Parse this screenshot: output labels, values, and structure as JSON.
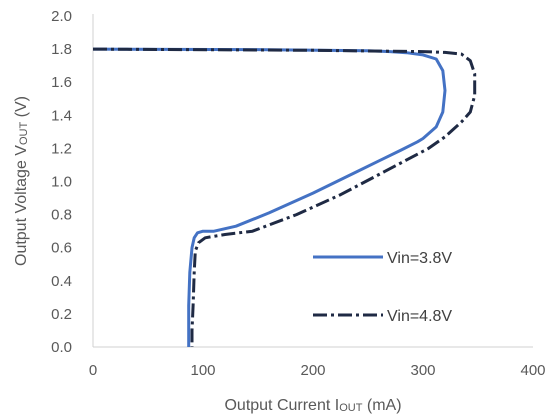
{
  "chart_data": {
    "type": "line",
    "xlabel_main": "Output  Current I",
    "xlabel_sub": "OUT",
    "xlabel_unit": " (mA)",
    "ylabel_main": "Output  Voltage V",
    "ylabel_sub": "OUT",
    "ylabel_unit": " (V)",
    "xlim": [
      0,
      400
    ],
    "ylim": [
      0,
      2.0
    ],
    "xticks": [
      "0",
      "100",
      "200",
      "300",
      "400"
    ],
    "yticks": [
      "0.0",
      "0.2",
      "0.4",
      "0.6",
      "0.8",
      "1.0",
      "1.2",
      "1.4",
      "1.6",
      "1.8",
      "2.0"
    ],
    "grid": false,
    "legend_position": "bottom-right",
    "series": [
      {
        "name": "Vin=3.8V",
        "style": "solid",
        "color": "#4472C4",
        "x": [
          0,
          150,
          250,
          270,
          285,
          300,
          312,
          318,
          320,
          318,
          312,
          300,
          295,
          280,
          240,
          200,
          160,
          130,
          110,
          100,
          95,
          92,
          90,
          88,
          87,
          87,
          87
        ],
        "y": [
          1.8,
          1.797,
          1.79,
          1.785,
          1.778,
          1.765,
          1.74,
          1.67,
          1.55,
          1.42,
          1.33,
          1.26,
          1.24,
          1.19,
          1.06,
          0.93,
          0.81,
          0.73,
          0.7,
          0.7,
          0.69,
          0.66,
          0.6,
          0.45,
          0.25,
          0.1,
          0.0
        ]
      },
      {
        "name": "Vin=4.8V",
        "style": "dashdot",
        "color": "#1F2A44",
        "x": [
          0,
          200,
          300,
          320,
          335,
          343,
          347,
          347,
          343,
          335,
          320,
          305,
          265,
          225,
          185,
          145,
          120,
          102,
          96,
          93,
          92,
          91,
          90,
          90
        ],
        "y": [
          1.8,
          1.793,
          1.785,
          1.78,
          1.77,
          1.73,
          1.65,
          1.52,
          1.42,
          1.36,
          1.27,
          1.2,
          1.06,
          0.92,
          0.8,
          0.7,
          0.68,
          0.66,
          0.63,
          0.58,
          0.45,
          0.25,
          0.1,
          0.0
        ]
      }
    ]
  }
}
